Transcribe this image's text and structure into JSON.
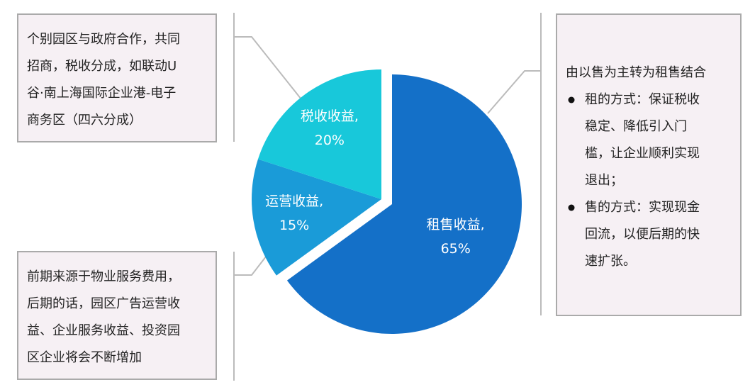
{
  "chart_data": {
    "type": "pie",
    "categories": [
      "租售收益,",
      "运营收益,",
      "税收收益,"
    ],
    "values": [
      65,
      15,
      20
    ],
    "value_labels": [
      "65%",
      "15%",
      "20%"
    ],
    "colors": [
      "#1470c8",
      "#1a9bd8",
      "#18c8da"
    ]
  },
  "annotations": {
    "top_left": [
      "个别园区与政府合作，共同",
      "招商，税收分成，如联动U",
      "谷·南上海国际企业港-电子",
      "商务区（四六分成）"
    ],
    "bottom_left": [
      "前期来源于物业服务费用，",
      "后期的话，园区广告运营收",
      "益、企业服务收益、投资园",
      "区企业将会不断增加"
    ],
    "right": {
      "heading": "由以售为主转为租售结合",
      "bullets": [
        [
          "租的方式：保证税收",
          "稳定、降低引入门",
          "槛，让企业顺利实现",
          "退出；"
        ],
        [
          "售的方式：实现现金",
          "回流，以便后期的快",
          "速扩张。"
        ]
      ]
    }
  }
}
